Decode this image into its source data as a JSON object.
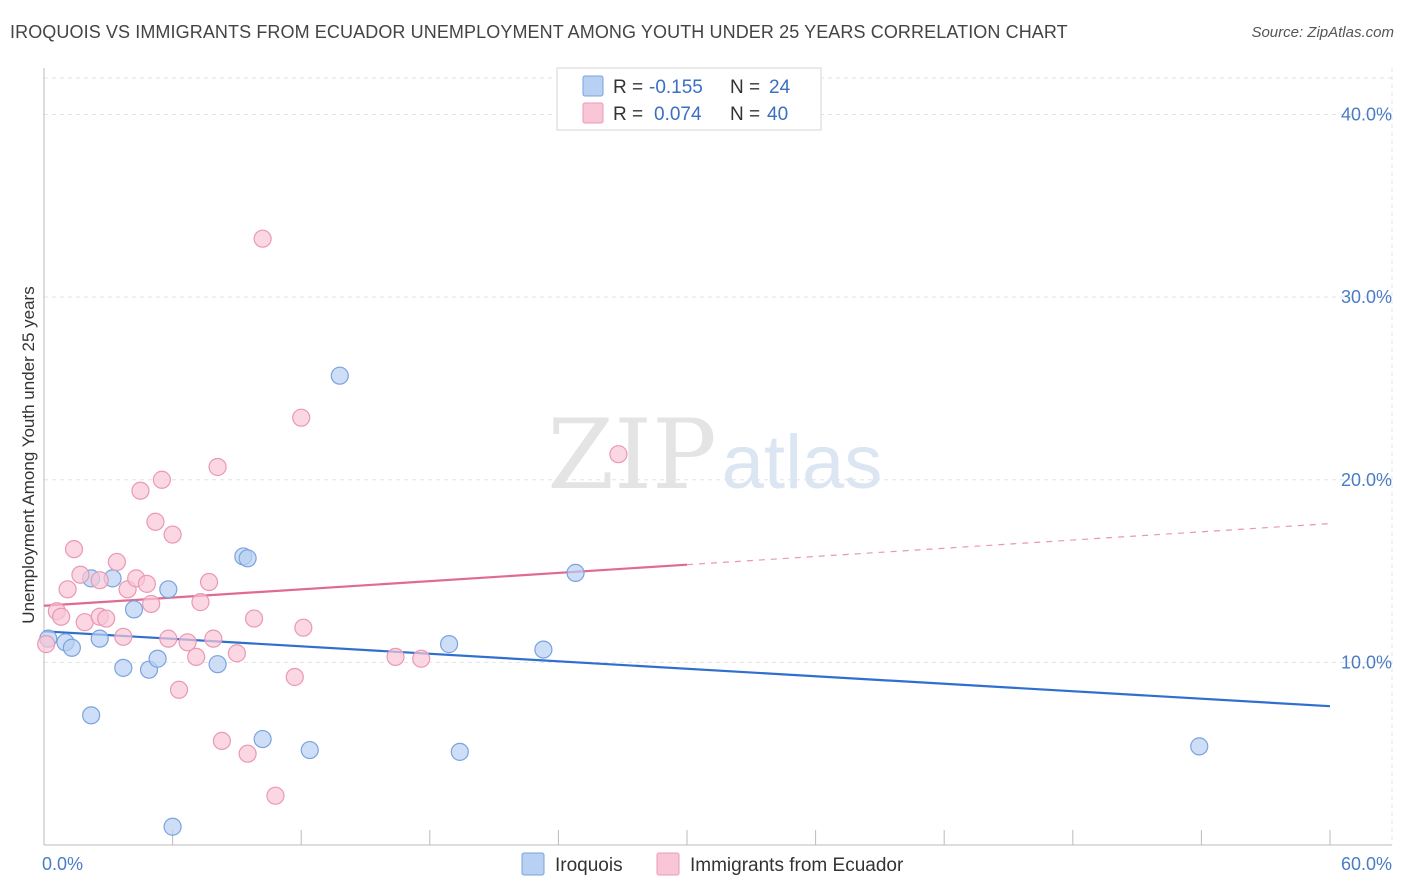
{
  "title": "IROQUOIS VS IMMIGRANTS FROM ECUADOR UNEMPLOYMENT AMONG YOUTH UNDER 25 YEARS CORRELATION CHART",
  "source": "Source: ZipAtlas.com",
  "watermark": {
    "zip": "ZIP",
    "atlas": "atlas"
  },
  "colors": {
    "iroquois_fill": "#b8d0f2",
    "iroquois_stroke": "#7aa3de",
    "iroquois_line": "#2e6fd0",
    "ecuador_fill": "#f8c6d6",
    "ecuador_stroke": "#eb98b4",
    "ecuador_line": "#e06a92",
    "tick_text": "#4a7cc6",
    "grid": "#e3e3e3"
  },
  "legend": {
    "rows": [
      {
        "r_label": "R =",
        "r_value": "-0.155",
        "n_label": "N =",
        "n_value": "24"
      },
      {
        "r_label": "R =",
        "r_value": "0.074",
        "n_label": "N =",
        "n_value": "40"
      }
    ]
  },
  "chart_data": {
    "type": "scatter",
    "title": "IROQUOIS VS IMMIGRANTS FROM ECUADOR UNEMPLOYMENT AMONG YOUTH UNDER 25 YEARS CORRELATION CHART",
    "xlabel": "",
    "ylabel": "Unemployment Among Youth under 25 years",
    "xlim": [
      0,
      60
    ],
    "ylim": [
      0,
      42
    ],
    "x_tick_labels": [
      "0.0%",
      "60.0%"
    ],
    "y_ticks": [
      10,
      20,
      30,
      40
    ],
    "y_tick_labels": [
      "10.0%",
      "20.0%",
      "30.0%",
      "40.0%"
    ],
    "grid": true,
    "legend_position": "top-center",
    "series": [
      {
        "name": "Iroquois",
        "R": -0.155,
        "N": 24,
        "trend": {
          "x0": 0,
          "y0": 11.7,
          "x1": 60,
          "y1": 7.6,
          "solid_until": 60
        },
        "points": [
          [
            0.2,
            11.3
          ],
          [
            1.0,
            11.1
          ],
          [
            1.3,
            10.8
          ],
          [
            2.2,
            14.6
          ],
          [
            2.2,
            7.1
          ],
          [
            3.2,
            14.6
          ],
          [
            2.6,
            11.3
          ],
          [
            3.7,
            9.7
          ],
          [
            4.2,
            12.9
          ],
          [
            4.9,
            9.6
          ],
          [
            5.3,
            10.2
          ],
          [
            5.8,
            14.0
          ],
          [
            6.0,
            1.0
          ],
          [
            8.1,
            9.9
          ],
          [
            9.3,
            15.8
          ],
          [
            9.5,
            15.7
          ],
          [
            10.2,
            5.8
          ],
          [
            12.4,
            5.2
          ],
          [
            13.8,
            25.7
          ],
          [
            18.9,
            11.0
          ],
          [
            19.4,
            5.1
          ],
          [
            23.3,
            10.7
          ],
          [
            24.8,
            14.9
          ],
          [
            53.9,
            5.4
          ]
        ]
      },
      {
        "name": "Immigrants from Ecuador",
        "R": 0.074,
        "N": 40,
        "trend": {
          "x0": 0,
          "y0": 13.1,
          "x1": 60,
          "y1": 17.6,
          "solid_until": 30
        },
        "points": [
          [
            0.1,
            11.0
          ],
          [
            0.6,
            12.8
          ],
          [
            0.8,
            12.5
          ],
          [
            1.1,
            14.0
          ],
          [
            1.4,
            16.2
          ],
          [
            1.7,
            14.8
          ],
          [
            1.9,
            12.2
          ],
          [
            2.6,
            14.5
          ],
          [
            2.6,
            12.5
          ],
          [
            2.9,
            12.4
          ],
          [
            3.4,
            15.5
          ],
          [
            3.7,
            11.4
          ],
          [
            3.9,
            14.0
          ],
          [
            4.3,
            14.6
          ],
          [
            4.5,
            19.4
          ],
          [
            4.8,
            14.3
          ],
          [
            5.0,
            13.2
          ],
          [
            5.2,
            17.7
          ],
          [
            5.5,
            20.0
          ],
          [
            5.8,
            11.3
          ],
          [
            6.0,
            17.0
          ],
          [
            6.3,
            8.5
          ],
          [
            6.7,
            11.1
          ],
          [
            7.1,
            10.3
          ],
          [
            7.3,
            13.3
          ],
          [
            7.7,
            14.4
          ],
          [
            7.9,
            11.3
          ],
          [
            8.1,
            20.7
          ],
          [
            8.3,
            5.7
          ],
          [
            9.0,
            10.5
          ],
          [
            9.5,
            5.0
          ],
          [
            9.8,
            12.4
          ],
          [
            10.2,
            33.2
          ],
          [
            10.8,
            2.7
          ],
          [
            11.7,
            9.2
          ],
          [
            12.0,
            23.4
          ],
          [
            12.1,
            11.9
          ],
          [
            16.4,
            10.3
          ],
          [
            17.6,
            10.2
          ],
          [
            26.8,
            21.4
          ]
        ]
      }
    ]
  },
  "bottom_legend": [
    {
      "label": "Iroquois"
    },
    {
      "label": "Immigrants from Ecuador"
    }
  ]
}
